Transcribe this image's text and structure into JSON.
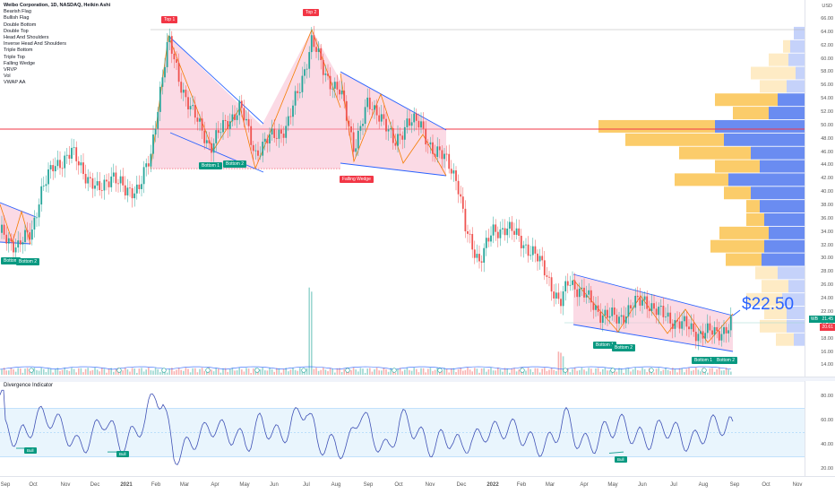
{
  "header": {
    "title": "Weibo Corporation, 1D, NASDAQ, Heikin Ashi",
    "overlays": [
      "Bearish Flag",
      "Bullish Flag",
      "Double Bottom",
      "Double Top",
      "Head And Shoulders",
      "Inverse Head And Shoulders",
      "Triple Bottom",
      "Triple Top",
      "Falling Wedge",
      "VRVP",
      "Vol",
      "VWAP AA"
    ]
  },
  "price_axis": {
    "currency": "USD",
    "ticks": [
      "66.00",
      "64.00",
      "62.00",
      "60.00",
      "58.00",
      "56.00",
      "54.00",
      "52.00",
      "50.00",
      "48.00",
      "46.00",
      "44.00",
      "42.00",
      "40.00",
      "38.00",
      "36.00",
      "34.00",
      "32.00",
      "30.00",
      "28.00",
      "26.00",
      "24.00",
      "22.00",
      "20.00",
      "18.00",
      "16.00",
      "14.00"
    ],
    "last_price_badge": "21.45",
    "symbol_badge": "WB",
    "vwap_badge": "20.61"
  },
  "callout": {
    "price_text": "$22.50"
  },
  "pattern_labels": {
    "top1": "Top 1",
    "top2": "Top 2",
    "falling_wedge": "Falling Wedge",
    "bottom1_a": "Bottom 1",
    "bottom2_a": "Bottom 2",
    "bottom_left": "Bottom",
    "bottom2_left": "Bottom 2",
    "bottom2_b": "Bottom 2",
    "bottom1_c": "Bottom 1",
    "bottom2_c": "Bottom 2",
    "red_badge_left": "",
    "red_badge_mid": ""
  },
  "oscillator": {
    "title": "Divergence Indicator",
    "ticks": [
      "80.00",
      "60.00",
      "40.00",
      "20.00"
    ],
    "bull_labels": [
      "Bull",
      "Bull",
      "Bull"
    ]
  },
  "time_axis": {
    "labels": [
      "Sep",
      "Oct",
      "Nov",
      "Dec",
      "2021",
      "Feb",
      "Mar",
      "Apr",
      "May",
      "Jun",
      "Jul",
      "Aug",
      "Sep",
      "Oct",
      "Nov",
      "Dec",
      "2022",
      "Feb",
      "Mar",
      "Apr",
      "May",
      "Jun",
      "Jul",
      "Aug",
      "Sep",
      "Oct",
      "Nov"
    ]
  },
  "colors": {
    "up": "#26a69a",
    "down": "#ef5350",
    "pattern_fill": "#f8bbd0",
    "trend_blue": "#2962ff",
    "pattern_orange": "#f57c00",
    "resistance_red": "#f23645",
    "vp_up": "#fbc75a",
    "vp_down": "#5a7ff0"
  }
}
